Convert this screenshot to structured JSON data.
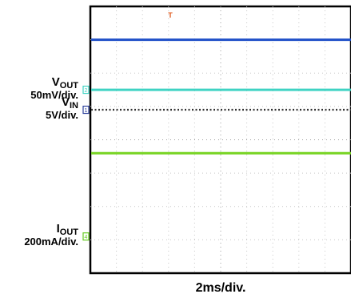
{
  "chart_data": {
    "type": "line",
    "title": "",
    "xlabel": "2ms/div.",
    "ylabel": "",
    "grid": true,
    "x_divisions": 10,
    "y_divisions": 8,
    "trigger_marker": "T",
    "channels": [
      {
        "id": "ch1",
        "name_main": "V",
        "name_sub": "OUT",
        "scale": "50mV/div.",
        "marker": "2",
        "color": "#3fd3c3",
        "level_div": 5.5
      },
      {
        "id": "ch2",
        "name_main": "V",
        "name_sub": "IN",
        "scale": "5V/div.",
        "marker": "1",
        "color": "#2b3f9b",
        "level_div": 4.9
      },
      {
        "id": "ch3",
        "name_main": "I",
        "name_sub": "OUT",
        "scale": "200mA/div.",
        "marker": "4",
        "color": "#66cc22",
        "level_div": 1.1
      }
    ],
    "series": [
      {
        "color": "#1f4fc8",
        "values": [
          7.0,
          7.0,
          7.0,
          7.0,
          7.0,
          7.0,
          7.0,
          7.0,
          7.0,
          7.0,
          7.0
        ]
      },
      {
        "color": "#3fd3c3",
        "values": [
          5.5,
          5.5,
          5.5,
          5.5,
          5.5,
          5.5,
          5.5,
          5.5,
          5.5,
          5.5,
          5.5
        ]
      },
      {
        "color": "#333333",
        "style": "dotted",
        "values": [
          4.9,
          4.9,
          4.9,
          4.9,
          4.9,
          4.9,
          4.9,
          4.9,
          4.9,
          4.9,
          4.9
        ]
      },
      {
        "color": "#77d422",
        "values": [
          3.6,
          3.6,
          3.6,
          3.6,
          3.6,
          3.6,
          3.6,
          3.6,
          3.6,
          3.6,
          3.6
        ]
      }
    ]
  }
}
